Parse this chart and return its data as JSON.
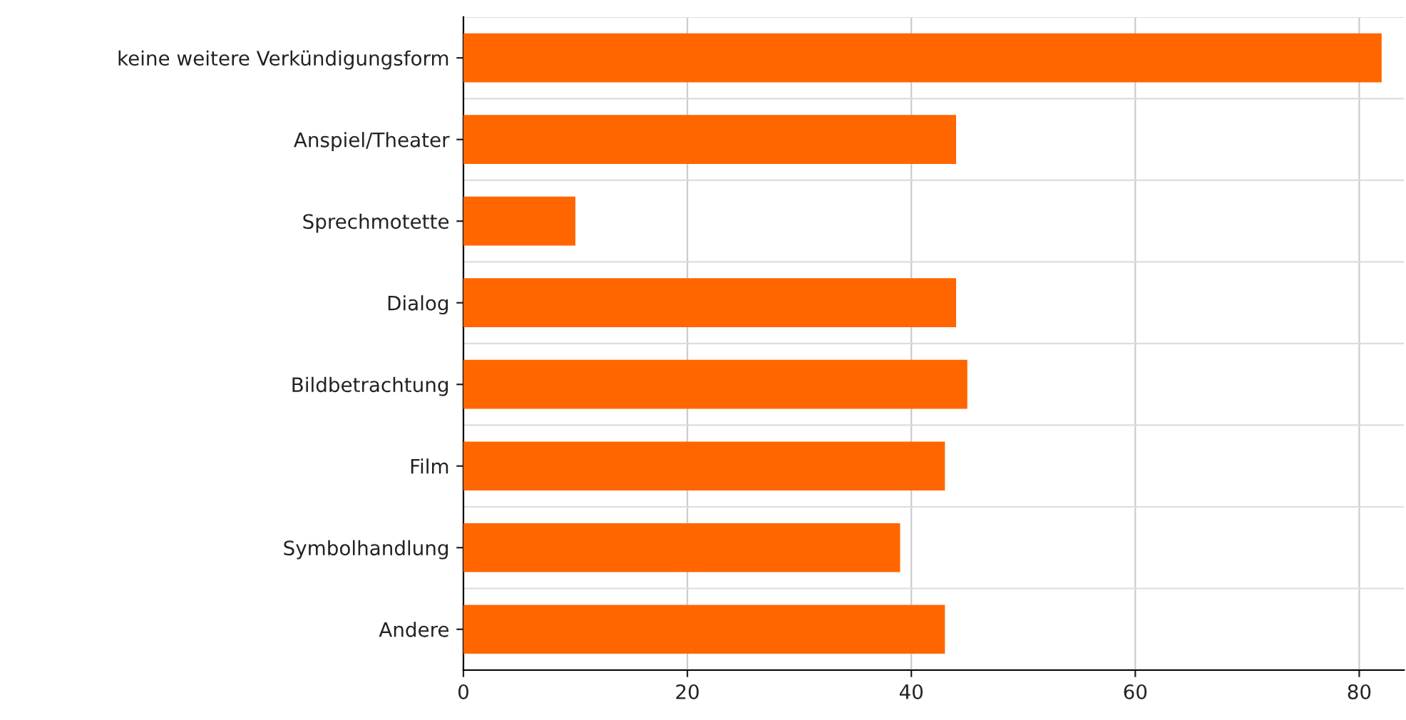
{
  "chart_data": {
    "type": "bar",
    "orientation": "horizontal",
    "categories": [
      "keine weitere Verkündigungsform",
      "Anspiel/Theater",
      "Sprechmotette",
      "Dialog",
      "Bildbetrachtung",
      "Film",
      "Symbolhandlung",
      "Andere"
    ],
    "values": [
      82,
      44,
      10,
      44,
      45,
      43,
      39,
      43
    ],
    "color": "#ff6600",
    "xlim": [
      0,
      84
    ],
    "xticks": [
      0,
      20,
      40,
      60,
      80
    ],
    "grid": true
  }
}
